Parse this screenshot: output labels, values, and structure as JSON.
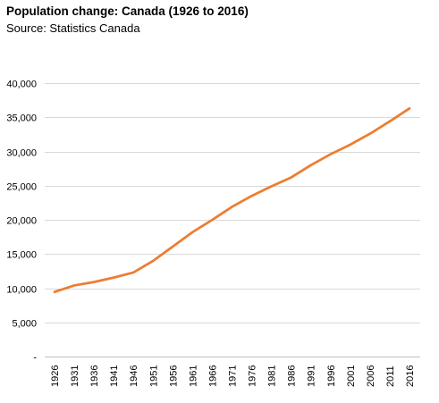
{
  "chart_data": {
    "type": "line",
    "title": "Population change: Canada (1926 to 2016)",
    "subtitle": "Source: Statistics Canada",
    "xlabel": "",
    "ylabel": "",
    "ylim": [
      0,
      40000
    ],
    "y_ticks": [
      0,
      5000,
      10000,
      15000,
      20000,
      25000,
      30000,
      35000,
      40000
    ],
    "y_tick_labels": [
      "-",
      "5,000",
      "10,000",
      "15,000",
      "20,000",
      "25,000",
      "30,000",
      "35,000",
      "40,000"
    ],
    "x_tick_labels": [
      "1926",
      "1931",
      "1936",
      "1941",
      "1946",
      "1951",
      "1956",
      "1961",
      "1966",
      "1971",
      "1976",
      "1981",
      "1986",
      "1991",
      "1996",
      "2001",
      "2006",
      "2011",
      "2016"
    ],
    "grid": true,
    "legend": "none",
    "series": [
      {
        "color": "#ED7D31",
        "x": [
          1926,
          1931,
          1936,
          1941,
          1946,
          1951,
          1956,
          1961,
          1966,
          1971,
          1976,
          1981,
          1986,
          1991,
          1996,
          2001,
          2006,
          2011,
          2016
        ],
        "values": [
          9450,
          10400,
          10900,
          11550,
          12300,
          14000,
          16100,
          18200,
          20000,
          21900,
          23500,
          24900,
          26200,
          28000,
          29600,
          31000,
          32600,
          34400,
          36300
        ]
      }
    ]
  }
}
